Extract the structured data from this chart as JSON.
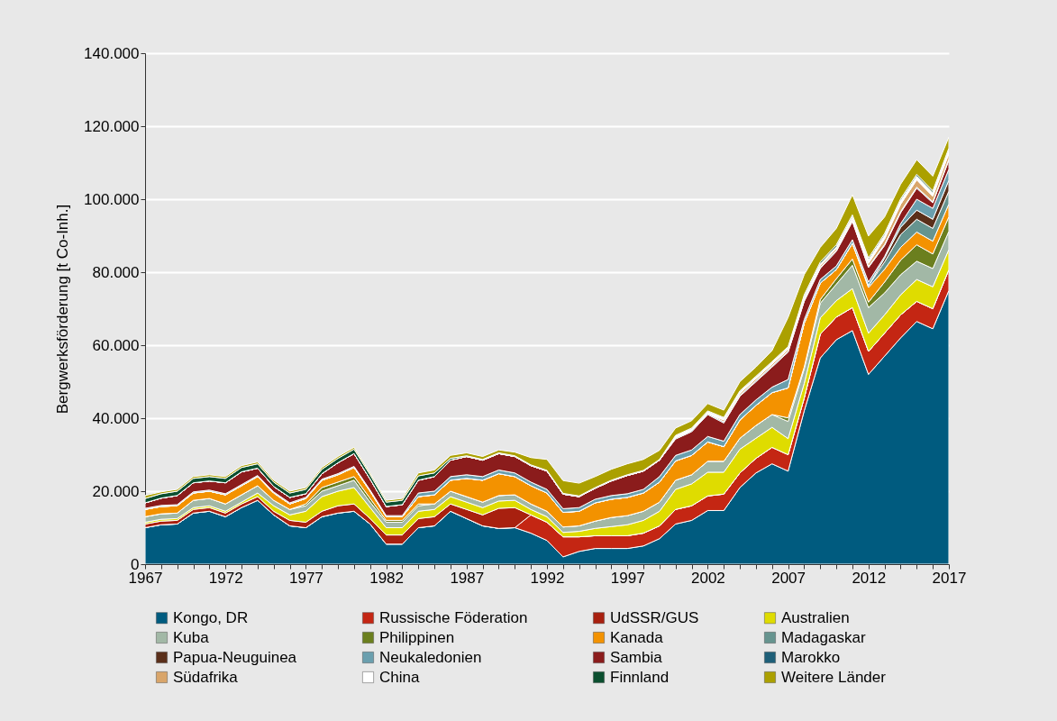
{
  "chart_data": {
    "type": "area",
    "stacked": true,
    "ylabel": "Bergwerksförderung [t Co-Inh.]",
    "grid": "y",
    "legend": "bottom",
    "x": [
      1967,
      1968,
      1969,
      1970,
      1971,
      1972,
      1973,
      1974,
      1975,
      1976,
      1977,
      1978,
      1979,
      1980,
      1981,
      1982,
      1983,
      1984,
      1985,
      1986,
      1987,
      1988,
      1989,
      1990,
      1991,
      1992,
      1993,
      1994,
      1995,
      1996,
      1997,
      1998,
      1999,
      2000,
      2001,
      2002,
      2003,
      2004,
      2005,
      2006,
      2007,
      2008,
      2009,
      2010,
      2011,
      2012,
      2013,
      2014,
      2015,
      2016,
      2017
    ],
    "xlim": [
      1967,
      2017
    ],
    "xticks": [
      1967,
      {
        "value": 1968,
        "label": null
      },
      {
        "value": 1969,
        "label": null
      },
      {
        "value": 1970,
        "label": null
      },
      {
        "value": 1971,
        "label": null
      },
      1972,
      {
        "value": 1973,
        "label": null
      },
      {
        "value": 1974,
        "label": null
      },
      {
        "value": 1975,
        "label": null
      },
      {
        "value": 1976,
        "label": null
      },
      1977,
      {
        "value": 1978,
        "label": null
      },
      {
        "value": 1979,
        "label": null
      },
      {
        "value": 1980,
        "label": null
      },
      {
        "value": 1981,
        "label": null
      },
      1982,
      {
        "value": 1983,
        "label": null
      },
      {
        "value": 1984,
        "label": null
      },
      {
        "value": 1985,
        "label": null
      },
      {
        "value": 1986,
        "label": null
      },
      1987,
      {
        "value": 1988,
        "label": null
      },
      {
        "value": 1989,
        "label": null
      },
      {
        "value": 1990,
        "label": null
      },
      {
        "value": 1991,
        "label": null
      },
      1992,
      {
        "value": 1993,
        "label": null
      },
      {
        "value": 1994,
        "label": null
      },
      {
        "value": 1995,
        "label": null
      },
      {
        "value": 1996,
        "label": null
      },
      1997,
      {
        "value": 1998,
        "label": null
      },
      {
        "value": 1999,
        "label": null
      },
      {
        "value": 2000,
        "label": null
      },
      {
        "value": 2001,
        "label": null
      },
      2002,
      {
        "value": 2003,
        "label": null
      },
      {
        "value": 2004,
        "label": null
      },
      {
        "value": 2005,
        "label": null
      },
      {
        "value": 2006,
        "label": null
      },
      2007,
      {
        "value": 2008,
        "label": null
      },
      {
        "value": 2009,
        "label": null
      },
      {
        "value": 2010,
        "label": null
      },
      {
        "value": 2011,
        "label": null
      },
      2012,
      {
        "value": 2013,
        "label": null
      },
      {
        "value": 2014,
        "label": null
      },
      {
        "value": 2015,
        "label": null
      },
      {
        "value": 2016,
        "label": null
      },
      2017
    ],
    "ylim": [
      0,
      140000
    ],
    "yticks": [
      0,
      {
        "value": 20000,
        "label": "20.000"
      },
      {
        "value": 40000,
        "label": "40.000"
      },
      {
        "value": 60000,
        "label": "60.000"
      },
      {
        "value": 80000,
        "label": "80.000"
      },
      {
        "value": 100000,
        "label": "100.000"
      },
      {
        "value": 120000,
        "label": "120.000"
      },
      {
        "value": 140000,
        "label": "140.000"
      }
    ],
    "series": [
      {
        "name": "Kongo, DR",
        "color": "#005b7f",
        "values": [
          10000,
          10800,
          11000,
          14000,
          14500,
          13000,
          15500,
          17500,
          13500,
          10500,
          10000,
          13000,
          14000,
          14500,
          11000,
          5500,
          5500,
          10000,
          10500,
          14500,
          12500,
          10500,
          9800,
          10000,
          8500,
          6500,
          2000,
          3500,
          4300,
          4300,
          4300,
          5000,
          7000,
          11000,
          12000,
          14700,
          14700,
          21000,
          25000,
          27500,
          25500,
          42000,
          56500,
          61500,
          64000,
          52000,
          57000,
          62000,
          66500,
          64500,
          75000
        ]
      },
      {
        "name": "Russische Föderation",
        "color": "#c42613",
        "values": [
          0,
          0,
          0,
          0,
          0,
          0,
          0,
          0,
          0,
          0,
          0,
          0,
          0,
          0,
          0,
          0,
          0,
          0,
          0,
          0,
          0,
          0,
          0,
          0,
          5000,
          5000,
          5500,
          4000,
          3500,
          3500,
          3500,
          3500,
          3500,
          4000,
          4000,
          4000,
          4500,
          4000,
          4000,
          4500,
          4500,
          3500,
          6500,
          6200,
          6300,
          6300,
          6300,
          6300,
          5500,
          5500,
          5700
        ]
      },
      {
        "name": "UdSSR/GUS",
        "color": "#a8200f",
        "values": [
          1000,
          1000,
          1000,
          1000,
          1000,
          1000,
          1000,
          1000,
          1000,
          1500,
          1500,
          1500,
          2000,
          2000,
          1500,
          2500,
          2500,
          2500,
          2500,
          2000,
          2500,
          3000,
          5500,
          5500,
          0,
          0,
          0,
          0,
          0,
          0,
          0,
          0,
          0,
          0,
          0,
          0,
          0,
          0,
          0,
          0,
          0,
          0,
          0,
          0,
          0,
          0,
          0,
          0,
          0,
          0,
          0
        ]
      },
      {
        "name": "Australien",
        "color": "#dfdc00",
        "values": [
          500,
          500,
          500,
          500,
          500,
          500,
          500,
          1000,
          1500,
          1500,
          3000,
          4000,
          4000,
          4500,
          3000,
          2000,
          2000,
          2000,
          2000,
          2000,
          2000,
          2000,
          2000,
          2000,
          1500,
          1500,
          1200,
          1500,
          2000,
          2500,
          3000,
          3500,
          4000,
          5500,
          6000,
          6500,
          6000,
          6500,
          5500,
          5500,
          4400,
          4000,
          4500,
          4500,
          5200,
          5000,
          5000,
          5500,
          6000,
          6000,
          5500
        ]
      },
      {
        "name": "Kuba",
        "color": "#a2b8a6",
        "values": [
          1500,
          1500,
          1500,
          2000,
          2000,
          2000,
          2000,
          2000,
          1500,
          1500,
          1500,
          1500,
          1500,
          2000,
          1500,
          1500,
          1500,
          1500,
          1500,
          1500,
          1500,
          1500,
          1500,
          1500,
          1500,
          1500,
          1500,
          1500,
          2000,
          2500,
          2500,
          2500,
          2500,
          2500,
          2500,
          3000,
          3000,
          3000,
          3500,
          3500,
          4700,
          4000,
          4000,
          4500,
          6400,
          7000,
          6000,
          5500,
          5000,
          5000,
          5000
        ]
      },
      {
        "name": "Philippinen",
        "color": "#6b7f1e",
        "values": [
          0,
          0,
          0,
          0,
          0,
          0,
          0,
          0,
          0,
          0,
          500,
          1000,
          1000,
          1000,
          1000,
          500,
          500,
          500,
          0,
          0,
          0,
          0,
          0,
          0,
          0,
          0,
          0,
          0,
          0,
          0,
          0,
          0,
          0,
          0,
          0,
          0,
          0,
          0,
          0,
          0,
          1000,
          500,
          1000,
          1500,
          1700,
          1500,
          3000,
          4000,
          4500,
          4000,
          4000
        ]
      },
      {
        "name": "Kanada",
        "color": "#f39200",
        "values": [
          2000,
          2000,
          2000,
          2000,
          2000,
          2500,
          2500,
          2500,
          2000,
          1500,
          1500,
          2000,
          2000,
          2500,
          2000,
          1000,
          1000,
          2000,
          2500,
          3000,
          5000,
          6000,
          6000,
          5000,
          5000,
          5000,
          4000,
          4000,
          5000,
          5000,
          5000,
          5000,
          5500,
          5300,
          5300,
          5300,
          4000,
          5000,
          5500,
          6000,
          8200,
          12000,
          4500,
          2500,
          4300,
          4000,
          3500,
          3500,
          3500,
          3500,
          3500
        ]
      },
      {
        "name": "Madagaskar",
        "color": "#66948f",
        "values": [
          0,
          0,
          0,
          0,
          0,
          0,
          0,
          0,
          0,
          0,
          0,
          0,
          0,
          0,
          0,
          0,
          0,
          0,
          0,
          0,
          0,
          0,
          0,
          0,
          0,
          0,
          0,
          0,
          0,
          0,
          0,
          0,
          0,
          0,
          0,
          0,
          0,
          0,
          0,
          0,
          0,
          0,
          0,
          0,
          0,
          500,
          2000,
          3500,
          3500,
          3500,
          3500
        ]
      },
      {
        "name": "Papua-Neuguinea",
        "color": "#5a2f1a",
        "values": [
          0,
          0,
          0,
          0,
          0,
          0,
          0,
          0,
          0,
          0,
          0,
          0,
          0,
          0,
          0,
          0,
          0,
          0,
          0,
          0,
          0,
          0,
          0,
          0,
          0,
          0,
          0,
          0,
          0,
          0,
          0,
          0,
          0,
          0,
          0,
          0,
          0,
          0,
          0,
          0,
          0,
          0,
          0,
          0,
          0,
          0,
          1000,
          2000,
          2500,
          2500,
          3000
        ]
      },
      {
        "name": "Neukaledonien",
        "color": "#6a9fae",
        "values": [
          300,
          300,
          300,
          300,
          300,
          300,
          300,
          300,
          300,
          300,
          300,
          300,
          300,
          300,
          300,
          300,
          300,
          1000,
          1000,
          1000,
          1000,
          1000,
          1000,
          1000,
          1000,
          1000,
          1000,
          1000,
          1000,
          1000,
          1000,
          1000,
          1500,
          1500,
          1500,
          1500,
          1500,
          1500,
          1500,
          1500,
          2300,
          1000,
          1000,
          1000,
          1000,
          1000,
          500,
          1000,
          3000,
          3000,
          3000
        ]
      },
      {
        "name": "Sambia",
        "color": "#8b1c1c",
        "values": [
          1500,
          2000,
          2500,
          2500,
          2500,
          3000,
          3500,
          2000,
          1500,
          1500,
          1000,
          1500,
          3000,
          3500,
          3000,
          2500,
          3000,
          3500,
          4000,
          4500,
          5000,
          4500,
          4500,
          4500,
          4500,
          5000,
          4000,
          3000,
          3000,
          4000,
          5000,
          5000,
          4500,
          4500,
          5000,
          6000,
          5000,
          5000,
          5000,
          5500,
          7500,
          5000,
          3000,
          4000,
          5000,
          4000,
          3000,
          3000,
          3000,
          1500,
          2500
        ]
      },
      {
        "name": "Marokko",
        "color": "#1e5f78",
        "values": [
          0,
          0,
          0,
          0,
          0,
          0,
          0,
          0,
          0,
          0,
          0,
          0,
          0,
          0,
          0,
          0,
          0,
          0,
          0,
          0,
          0,
          0,
          0,
          0,
          0,
          0,
          0,
          0,
          0,
          0,
          0,
          0,
          0,
          300,
          300,
          300,
          300,
          300,
          300,
          300,
          300,
          300,
          300,
          300,
          300,
          300,
          300,
          300,
          300,
          300,
          300
        ]
      },
      {
        "name": "Südafrika",
        "color": "#d9a56a",
        "values": [
          0,
          0,
          0,
          0,
          0,
          0,
          0,
          0,
          0,
          0,
          0,
          0,
          0,
          0,
          0,
          0,
          0,
          0,
          0,
          0,
          0,
          0,
          0,
          0,
          0,
          0,
          0,
          0,
          0,
          0,
          0,
          0,
          0,
          0,
          0,
          0,
          500,
          500,
          500,
          500,
          500,
          500,
          500,
          500,
          500,
          800,
          1500,
          2000,
          2000,
          1500,
          1500
        ]
      },
      {
        "name": "China",
        "color": "#ffffff",
        "values": [
          0,
          0,
          0,
          0,
          0,
          0,
          0,
          0,
          0,
          0,
          0,
          0,
          0,
          0,
          0,
          0,
          0,
          0,
          0,
          0,
          0,
          0,
          0,
          0,
          0,
          0,
          0,
          0,
          0,
          0,
          0,
          0,
          0,
          500,
          500,
          500,
          500,
          500,
          500,
          500,
          500,
          500,
          500,
          500,
          500,
          1000,
          1000,
          1000,
          1000,
          1000,
          1000
        ]
      },
      {
        "name": "Finnland",
        "color": "#0b4f2f",
        "values": [
          1200,
          1200,
          1200,
          1200,
          1200,
          1200,
          1200,
          1200,
          1200,
          1200,
          1200,
          1200,
          1200,
          1200,
          1200,
          1200,
          1200,
          1200,
          1000,
          500,
          200,
          200,
          200,
          200,
          200,
          200,
          200,
          200,
          200,
          200,
          200,
          200,
          200,
          200,
          200,
          200,
          200,
          200,
          200,
          200,
          200,
          500,
          500,
          500,
          500,
          500,
          500,
          500,
          500,
          500,
          500
        ]
      },
      {
        "name": "Weitere Länder",
        "color": "#aba000",
        "values": [
          800,
          500,
          500,
          500,
          500,
          500,
          500,
          500,
          500,
          500,
          500,
          500,
          500,
          500,
          500,
          500,
          500,
          800,
          800,
          800,
          800,
          800,
          800,
          1000,
          2000,
          3000,
          3500,
          3500,
          3000,
          3000,
          3000,
          3000,
          2500,
          2000,
          2000,
          2000,
          2000,
          2500,
          2500,
          3000,
          8000,
          5500,
          4000,
          4500,
          5500,
          6000,
          4500,
          4000,
          4000,
          4000,
          3000
        ]
      }
    ]
  }
}
